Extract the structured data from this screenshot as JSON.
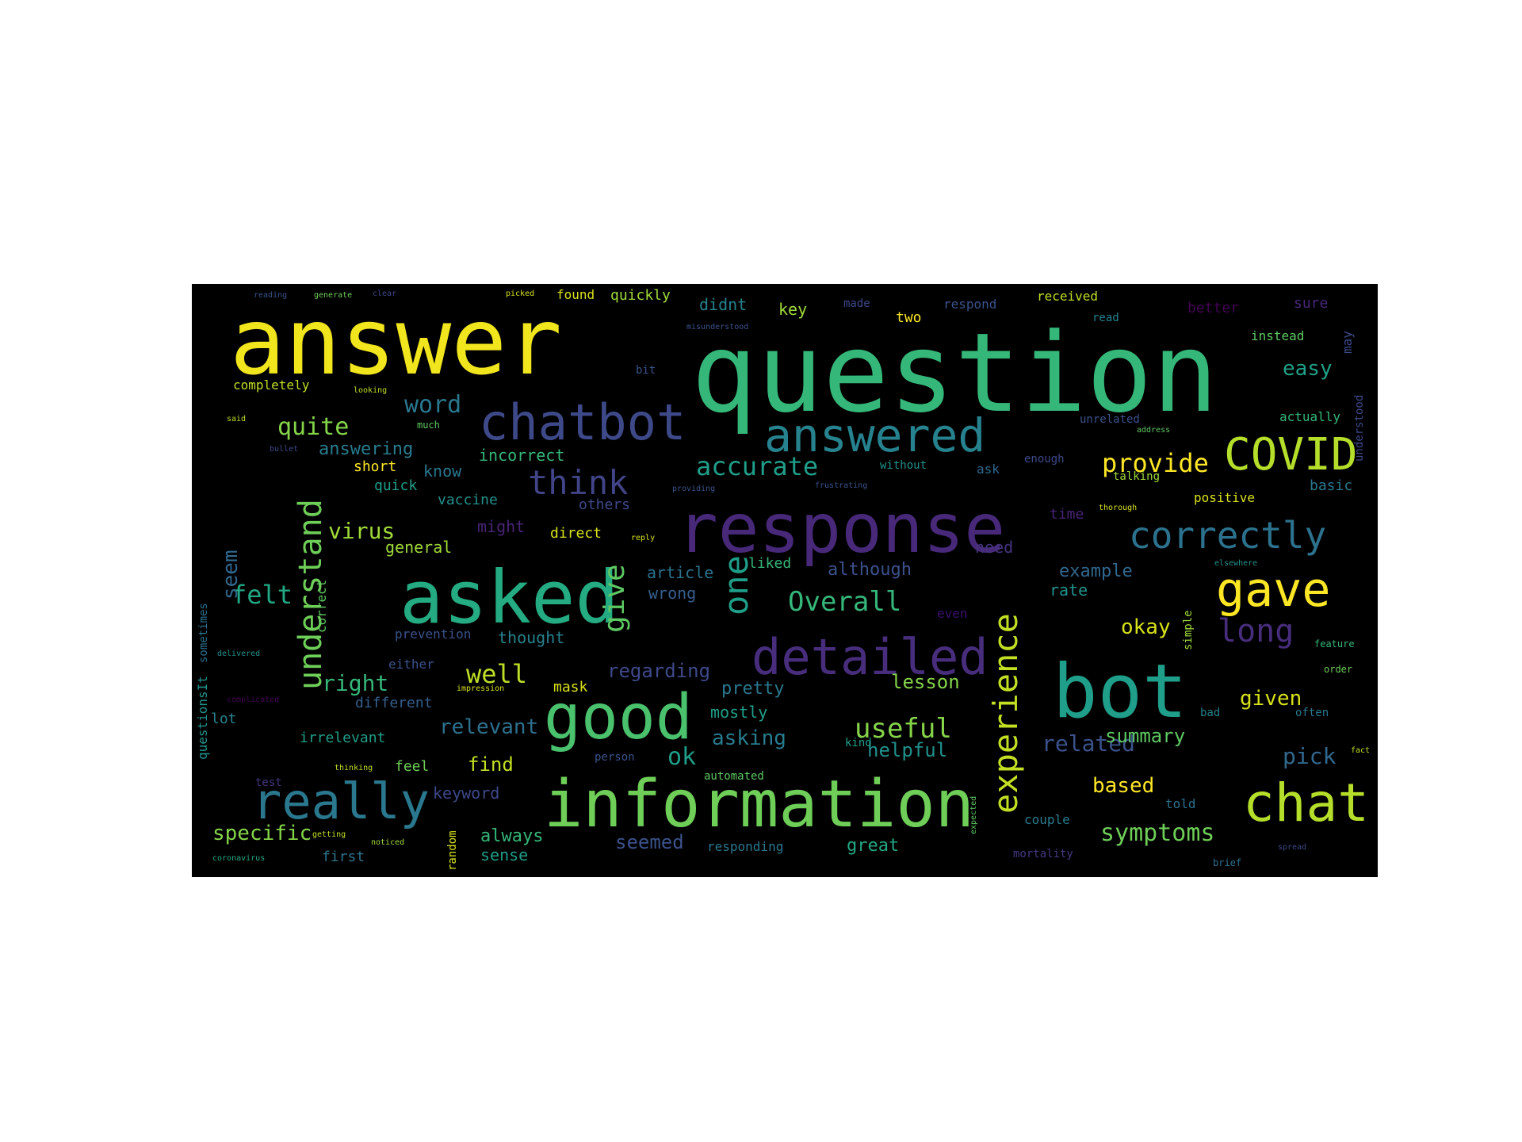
{
  "words": [
    {
      "text": "answer",
      "color": "#f1e51d"
    },
    {
      "text": "question",
      "color": "#35b779"
    },
    {
      "text": "response",
      "color": "#482878"
    },
    {
      "text": "information",
      "color": "#6ece58"
    },
    {
      "text": "asked",
      "color": "#25ab82"
    },
    {
      "text": "bot",
      "color": "#1f9e89"
    },
    {
      "text": "chatbot",
      "color": "#3e4989"
    },
    {
      "text": "good",
      "color": "#4ac16d"
    },
    {
      "text": "chat",
      "color": "#b5de2b"
    },
    {
      "text": "answered",
      "color": "#26828e"
    },
    {
      "text": "really",
      "color": "#2a788e"
    },
    {
      "text": "detailed",
      "color": "#472d7b"
    },
    {
      "text": "gave",
      "color": "#fde725"
    },
    {
      "text": "COVID",
      "color": "#b5de2b"
    },
    {
      "text": "correctly",
      "color": "#2c728e"
    },
    {
      "text": "experience",
      "color": "#c2df23"
    },
    {
      "text": "understand",
      "color": "#6ece58"
    },
    {
      "text": "think",
      "color": "#414487"
    },
    {
      "text": "one",
      "color": "#1f9e89"
    },
    {
      "text": "give",
      "color": "#5ec962"
    },
    {
      "text": "accurate",
      "color": "#1f9e89"
    },
    {
      "text": "long",
      "color": "#472d7b"
    },
    {
      "text": "useful",
      "color": "#86d549"
    },
    {
      "text": "Overall",
      "color": "#35b779"
    },
    {
      "text": "provide",
      "color": "#fde725"
    },
    {
      "text": "quite",
      "color": "#86d549"
    },
    {
      "text": "word",
      "color": "#2a788e"
    },
    {
      "text": "felt",
      "color": "#22a884"
    },
    {
      "text": "well",
      "color": "#bddf26"
    },
    {
      "text": "symptoms",
      "color": "#6ece58"
    },
    {
      "text": "related",
      "color": "#3b528b"
    },
    {
      "text": "pick",
      "color": "#31688e"
    },
    {
      "text": "given",
      "color": "#d8e219"
    },
    {
      "text": "based",
      "color": "#fde725"
    },
    {
      "text": "easy",
      "color": "#1fa187"
    },
    {
      "text": "relevant",
      "color": "#2d708e"
    },
    {
      "text": "specific",
      "color": "#86d549"
    },
    {
      "text": "virus",
      "color": "#a0da39"
    },
    {
      "text": "right",
      "color": "#35b779"
    },
    {
      "text": "ok",
      "color": "#1f9e89"
    },
    {
      "text": "okay",
      "color": "#d8e219"
    },
    {
      "text": "seem",
      "color": "#31688e"
    },
    {
      "text": "lesson",
      "color": "#86d549"
    },
    {
      "text": "asking",
      "color": "#287c8e"
    },
    {
      "text": "helpful",
      "color": "#21918c"
    },
    {
      "text": "summary",
      "color": "#5ec962"
    },
    {
      "text": "find",
      "color": "#c2df23"
    },
    {
      "text": "always",
      "color": "#35b779"
    },
    {
      "text": "sense",
      "color": "#1f9e89"
    },
    {
      "text": "seemed",
      "color": "#3b528b"
    },
    {
      "text": "great",
      "color": "#22a884"
    },
    {
      "text": "regarding",
      "color": "#3e4989"
    },
    {
      "text": "pretty",
      "color": "#2a788e"
    },
    {
      "text": "mostly",
      "color": "#1f9e89"
    },
    {
      "text": "wrong",
      "color": "#355f8d"
    },
    {
      "text": "article",
      "color": "#2c728e"
    },
    {
      "text": "although",
      "color": "#3b528b"
    },
    {
      "text": "example",
      "color": "#31688e"
    },
    {
      "text": "rate",
      "color": "#21918c"
    },
    {
      "text": "need",
      "color": "#46337e"
    },
    {
      "text": "liked",
      "color": "#35b779"
    },
    {
      "text": "might",
      "color": "#482475"
    },
    {
      "text": "direct",
      "color": "#d8e219"
    },
    {
      "text": "general",
      "color": "#a0da39"
    },
    {
      "text": "answering",
      "color": "#287c8e"
    },
    {
      "text": "incorrect",
      "color": "#35b779"
    },
    {
      "text": "know",
      "color": "#2a788e"
    },
    {
      "text": "short",
      "color": "#fde725"
    },
    {
      "text": "quick",
      "color": "#1f9e89"
    },
    {
      "text": "vaccine",
      "color": "#21918c"
    },
    {
      "text": "others",
      "color": "#3e4989"
    },
    {
      "text": "thought",
      "color": "#26828e"
    },
    {
      "text": "prevention",
      "color": "#3b528b"
    },
    {
      "text": "either",
      "color": "#3b528b"
    },
    {
      "text": "mask",
      "color": "#d8e219"
    },
    {
      "text": "different",
      "color": "#355f8d"
    },
    {
      "text": "irrelevant",
      "color": "#1f9e89"
    },
    {
      "text": "lot",
      "color": "#26828e"
    },
    {
      "text": "feel",
      "color": "#6ece58"
    },
    {
      "text": "keyword",
      "color": "#3e4989"
    },
    {
      "text": "first",
      "color": "#2c728e"
    },
    {
      "text": "correct",
      "color": "#5ec962"
    },
    {
      "text": "sometimes",
      "color": "#2c728e"
    },
    {
      "text": "questionsIt",
      "color": "#21918c"
    },
    {
      "text": "random",
      "color": "#d8e219"
    },
    {
      "text": "completely",
      "color": "#c2df23"
    },
    {
      "text": "didnt",
      "color": "#26828e"
    },
    {
      "text": "key",
      "color": "#a0da39"
    },
    {
      "text": "two",
      "color": "#fde725"
    },
    {
      "text": "quickly",
      "color": "#a0da39"
    },
    {
      "text": "found",
      "color": "#d8e219"
    },
    {
      "text": "received",
      "color": "#c2df23"
    },
    {
      "text": "respond",
      "color": "#3b528b"
    },
    {
      "text": "made",
      "color": "#3e4989"
    },
    {
      "text": "better",
      "color": "#440154"
    },
    {
      "text": "sure",
      "color": "#482878"
    },
    {
      "text": "read",
      "color": "#26828e"
    },
    {
      "text": "instead",
      "color": "#5ec962"
    },
    {
      "text": "may",
      "color": "#3e4989"
    },
    {
      "text": "actually",
      "color": "#35b779"
    },
    {
      "text": "unrelated",
      "color": "#3b528b"
    },
    {
      "text": "understood",
      "color": "#3e4989"
    },
    {
      "text": "talking",
      "color": "#a0da39"
    },
    {
      "text": "basic",
      "color": "#2a788e"
    },
    {
      "text": "positive",
      "color": "#d8e219"
    },
    {
      "text": "time",
      "color": "#482475"
    },
    {
      "text": "without",
      "color": "#21918c"
    },
    {
      "text": "ask",
      "color": "#31688e"
    },
    {
      "text": "enough",
      "color": "#3e4989"
    },
    {
      "text": "even",
      "color": "#3b0f70"
    },
    {
      "text": "simple",
      "color": "#a0da39"
    },
    {
      "text": "responding",
      "color": "#2a788e"
    },
    {
      "text": "told",
      "color": "#2c728e"
    },
    {
      "text": "couple",
      "color": "#287c8e"
    },
    {
      "text": "often",
      "color": "#2a788e"
    },
    {
      "text": "bad",
      "color": "#26828e"
    },
    {
      "text": "mortality",
      "color": "#443983"
    },
    {
      "text": "test",
      "color": "#46337e"
    },
    {
      "text": "getting",
      "color": "#c2df23"
    },
    {
      "text": "bit",
      "color": "#3b528b"
    },
    {
      "text": "picked",
      "color": "#d8e219"
    },
    {
      "text": "reading",
      "color": "#3b528b"
    },
    {
      "text": "generate",
      "color": "#6ece58"
    },
    {
      "text": "clear",
      "color": "#3e4989"
    },
    {
      "text": "looking",
      "color": "#c2df23"
    },
    {
      "text": "said",
      "color": "#c2df23"
    },
    {
      "text": "much",
      "color": "#5ec962"
    },
    {
      "text": "bullet",
      "color": "#3e4989"
    },
    {
      "text": "automated",
      "color": "#5ec962"
    },
    {
      "text": "person",
      "color": "#3b528b"
    },
    {
      "text": "expected",
      "color": "#5ec962"
    },
    {
      "text": "kind",
      "color": "#1f9e89"
    },
    {
      "text": "complicated",
      "color": "#440154"
    },
    {
      "text": "delivered",
      "color": "#21918c"
    },
    {
      "text": "noticed",
      "color": "#a0da39"
    },
    {
      "text": "coronavirus",
      "color": "#22a884"
    },
    {
      "text": "thinking",
      "color": "#c2df23"
    },
    {
      "text": "address",
      "color": "#5ec962"
    },
    {
      "text": "thorough",
      "color": "#d8e219"
    },
    {
      "text": "frustrating",
      "color": "#3b528b"
    },
    {
      "text": "providing",
      "color": "#3b528b"
    },
    {
      "text": "impression",
      "color": "#d8e219"
    },
    {
      "text": "reply",
      "color": "#d8e219"
    },
    {
      "text": "misunderstood",
      "color": "#3b528b"
    },
    {
      "text": "feature",
      "color": "#35b779"
    },
    {
      "text": "spread",
      "color": "#3e4989"
    },
    {
      "text": "brief",
      "color": "#2c728e"
    },
    {
      "text": "order",
      "color": "#6ece58"
    },
    {
      "text": "elsewhere",
      "color": "#21918c"
    },
    {
      "text": "fact",
      "color": "#c2df23"
    }
  ]
}
